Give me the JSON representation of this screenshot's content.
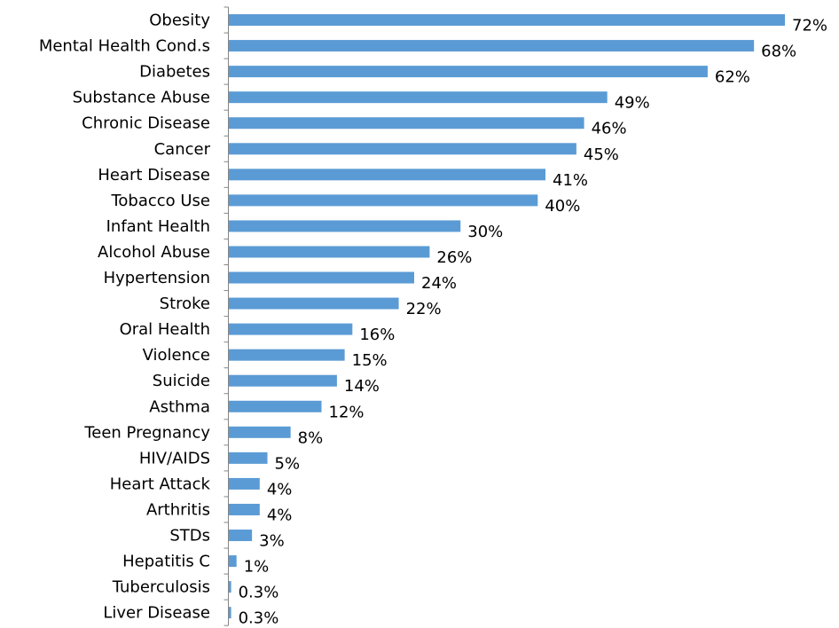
{
  "chart_data": {
    "type": "bar",
    "orientation": "horizontal",
    "categories": [
      "Obesity",
      "Mental Health Cond.s",
      "Diabetes",
      "Substance Abuse",
      "Chronic Disease",
      "Cancer",
      "Heart Disease",
      "Tobacco Use",
      "Infant Health",
      "Alcohol Abuse",
      "Hypertension",
      "Stroke",
      "Oral Health",
      "Violence",
      "Suicide",
      "Asthma",
      "Teen Pregnancy",
      "HIV/AIDS",
      "Heart Attack",
      "Arthritis",
      "STDs",
      "Hepatitis C",
      "Tuberculosis",
      "Liver Disease"
    ],
    "values": [
      72,
      68,
      62,
      49,
      46,
      45,
      41,
      40,
      30,
      26,
      24,
      22,
      16,
      15,
      14,
      12,
      8,
      5,
      4,
      4,
      3,
      1,
      0.3,
      0.3
    ],
    "value_labels": [
      "72%",
      "68%",
      "62%",
      "49%",
      "46%",
      "45%",
      "41%",
      "40%",
      "30%",
      "26%",
      "24%",
      "22%",
      "16%",
      "15%",
      "14%",
      "12%",
      "8%",
      "5%",
      "4%",
      "4%",
      "3%",
      "1%",
      "0.3%",
      "0.3%"
    ],
    "title": "",
    "xlabel": "",
    "ylabel": "",
    "xlim": [
      0,
      72
    ],
    "grid": false,
    "legend": "none",
    "bar_color": "#5B9BD5",
    "axis_color": "#868686"
  }
}
